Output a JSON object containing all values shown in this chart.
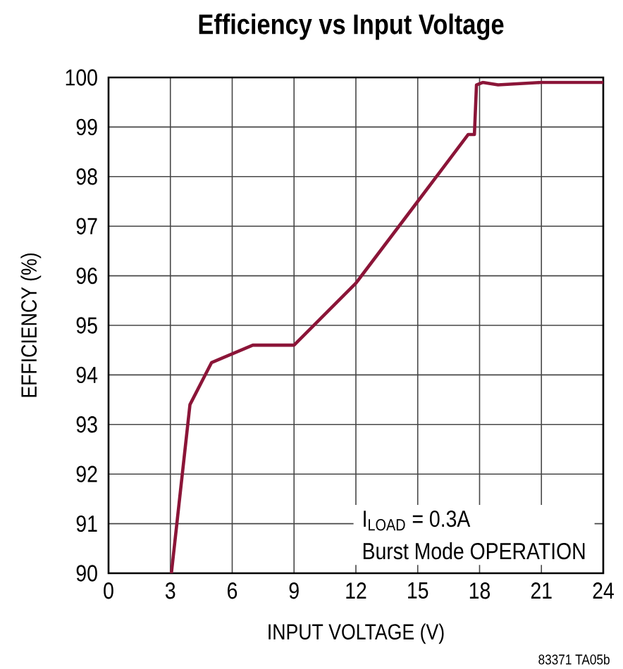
{
  "chart_data": {
    "type": "line",
    "title": "Efficiency vs Input Voltage",
    "xlabel": "INPUT VOLTAGE (V)",
    "ylabel": "EFFICIENCY (%)",
    "x": [
      3.05,
      3.95,
      5.0,
      7.0,
      9.0,
      12.0,
      15.0,
      17.45,
      17.75,
      17.85,
      18.15,
      18.9,
      21.0,
      24.0
    ],
    "values": [
      90,
      93.4,
      94.25,
      94.6,
      94.6,
      95.85,
      97.5,
      98.85,
      98.85,
      99.85,
      99.9,
      99.85,
      99.9,
      99.9
    ],
    "color": "#8b1538",
    "xlim": [
      0,
      24
    ],
    "xticks": [
      0,
      3,
      6,
      9,
      12,
      15,
      18,
      21,
      24
    ],
    "ylim": [
      90,
      100
    ],
    "yticks": [
      90,
      91,
      92,
      93,
      94,
      95,
      96,
      97,
      98,
      99,
      100
    ],
    "grid": true,
    "marker": "none",
    "line_style": "solid",
    "annotations": [
      "I$_{LOAD}$ = 0.3A",
      "Burst Mode OPERATION",
      "83371 TA05b"
    ]
  }
}
